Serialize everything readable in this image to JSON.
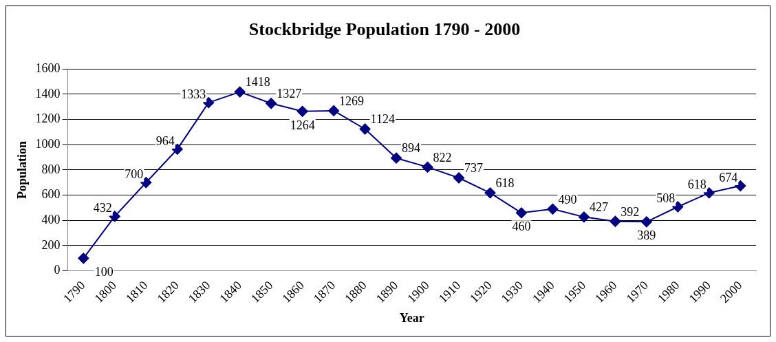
{
  "chart_data": {
    "type": "line",
    "title": "Stockbridge Population 1790 - 2000",
    "xlabel": "Year",
    "ylabel": "Population",
    "categories": [
      "1790",
      "1800",
      "1810",
      "1820",
      "1830",
      "1840",
      "1850",
      "1860",
      "1870",
      "1880",
      "1890",
      "1900",
      "1910",
      "1920",
      "1930",
      "1940",
      "1950",
      "1960",
      "1970",
      "1980",
      "1990",
      "2000"
    ],
    "series": [
      {
        "color": "#000080",
        "values": [
          100,
          432,
          700,
          964,
          1333,
          1418,
          1327,
          1264,
          1269,
          1124,
          894,
          822,
          737,
          618,
          460,
          490,
          427,
          392,
          389,
          508,
          618,
          674
        ]
      }
    ],
    "ylim": [
      0,
      1600
    ],
    "yticks": [
      0,
      200,
      400,
      600,
      800,
      1000,
      1200,
      1400,
      1600
    ],
    "grid": "y",
    "legend": false,
    "marker": "diamond",
    "line_style": "solid",
    "data_labels": true
  }
}
